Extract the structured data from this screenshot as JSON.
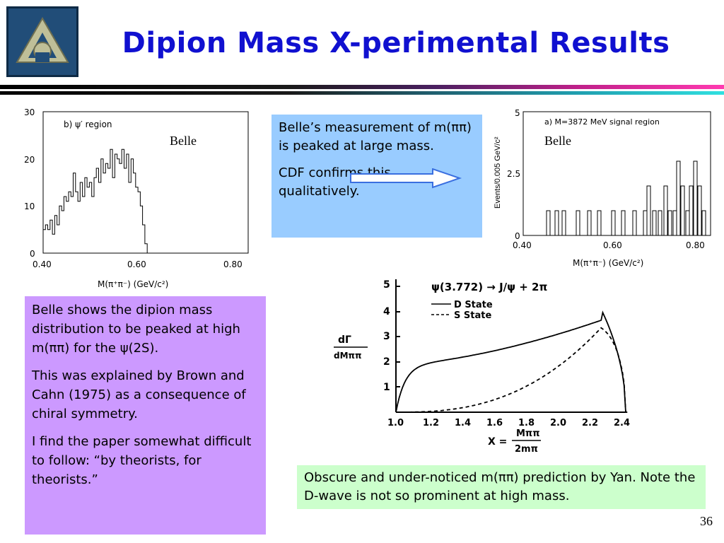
{
  "slide": {
    "title": "Dipion Mass X-perimental Results",
    "page_number": "36"
  },
  "left_plot": {
    "panel_label": "b) ψ′ region",
    "belle_label": "Belle",
    "y_ticks": [
      "30",
      "20",
      "10",
      "0"
    ],
    "x_ticks": [
      "0.40",
      "0.60",
      "0.80"
    ],
    "x_axis_label": "M(π⁺π⁻) (GeV/c²)"
  },
  "right_plot": {
    "panel_label": "a) M=3872 MeV signal region",
    "belle_label": "Belle",
    "y_ticks": [
      "5",
      "2.5",
      "0"
    ],
    "x_ticks": [
      "0.40",
      "0.60",
      "0.80"
    ],
    "x_axis_label": "M(π⁺π⁻) (GeV/c²)",
    "y_axis_label": "Events/0.005 GeV/c²"
  },
  "yan_plot": {
    "reaction": "ψ(3.772) → J/ψ + 2π",
    "legend_d": "D  State",
    "legend_s": "S  State",
    "y_ticks": [
      "5",
      "4",
      "3",
      "2",
      "1"
    ],
    "x_ticks": [
      "1.0",
      "1.2",
      "1.4",
      "1.6",
      "1.8",
      "2.0",
      "2.2",
      "2.4"
    ],
    "y_label_num": "dΓ",
    "y_label_den": "dMππ",
    "x_label_lhs": "X =",
    "x_label_num": "Mππ",
    "x_label_den": "2mπ"
  },
  "box_blue": {
    "p1": "Belle’s measurement of m(ππ) is peaked at large mass.",
    "p2": "CDF confirms this qualitatively."
  },
  "box_purple": {
    "p1": "Belle shows the dipion mass distribution to be peaked at high  m(ππ) for the ψ(2S).",
    "p2": "This was explained by Brown and Cahn (1975) as a consequence  of chiral symmetry.",
    "p3": "I find the paper somewhat difficult to follow: “by theorists, for theorists.”"
  },
  "box_green": {
    "text": "Obscure and under-noticed m(ππ) prediction by Yan. Note the D-wave is not so prominent at high mass."
  },
  "colors": {
    "title": "#1010d0",
    "blue_box": "#99ccff",
    "purple_box": "#cc99ff",
    "green_box": "#ccffcc",
    "arrow": "#3a6fe0"
  }
}
